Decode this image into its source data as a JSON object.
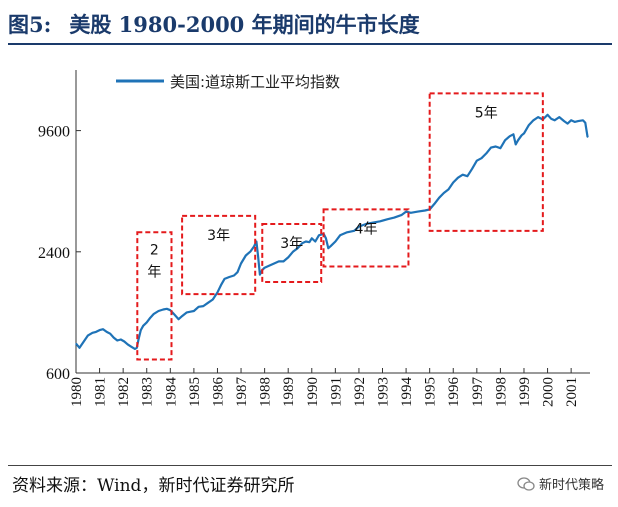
{
  "figure": {
    "number": "图5:",
    "title": "美股 1980-2000 年期间的牛市长度"
  },
  "source": "资料来源：Wind，新时代证券研究所",
  "watermark": "新时代策略",
  "chart_data": {
    "type": "line",
    "series": [
      {
        "name": "美国:道琼斯工业平均指数",
        "color": "#1f73b7",
        "x": [
          1980.0,
          1980.15,
          1980.3,
          1980.5,
          1980.7,
          1980.85,
          1981.0,
          1981.15,
          1981.3,
          1981.45,
          1981.6,
          1981.75,
          1981.9,
          1982.05,
          1982.2,
          1982.35,
          1982.5,
          1982.58,
          1982.65,
          1982.75,
          1982.85,
          1983.0,
          1983.15,
          1983.3,
          1983.5,
          1983.7,
          1983.85,
          1984.0,
          1984.15,
          1984.35,
          1984.5,
          1984.7,
          1984.85,
          1985.0,
          1985.2,
          1985.4,
          1985.6,
          1985.8,
          1986.0,
          1986.15,
          1986.3,
          1986.5,
          1986.7,
          1986.85,
          1987.0,
          1987.2,
          1987.4,
          1987.55,
          1987.65,
          1987.72,
          1987.8,
          1987.9,
          1988.0,
          1988.2,
          1988.4,
          1988.6,
          1988.8,
          1989.0,
          1989.2,
          1989.4,
          1989.6,
          1989.75,
          1989.9,
          1990.0,
          1990.15,
          1990.3,
          1990.5,
          1990.6,
          1990.7,
          1990.8,
          1991.0,
          1991.2,
          1991.5,
          1991.8,
          1992.0,
          1992.3,
          1992.6,
          1992.9,
          1993.2,
          1993.5,
          1993.8,
          1994.0,
          1994.2,
          1994.5,
          1994.8,
          1995.0,
          1995.2,
          1995.4,
          1995.6,
          1995.8,
          1996.0,
          1996.2,
          1996.4,
          1996.6,
          1996.8,
          1997.0,
          1997.2,
          1997.4,
          1997.6,
          1997.8,
          1998.0,
          1998.2,
          1998.4,
          1998.55,
          1998.65,
          1998.75,
          1998.9,
          1999.0,
          1999.2,
          1999.4,
          1999.6,
          1999.8,
          2000.0,
          2000.15,
          2000.3,
          2000.5,
          2000.7,
          2000.85,
          2001.0,
          2001.15,
          2001.3,
          2001.5,
          2001.6,
          2001.7
        ],
        "values": [
          840,
          800,
          850,
          920,
          950,
          960,
          980,
          990,
          960,
          940,
          900,
          870,
          880,
          860,
          830,
          810,
          790,
          800,
          880,
          980,
          1030,
          1070,
          1130,
          1180,
          1220,
          1240,
          1250,
          1230,
          1180,
          1110,
          1150,
          1200,
          1210,
          1220,
          1280,
          1290,
          1340,
          1390,
          1510,
          1640,
          1760,
          1800,
          1830,
          1900,
          2100,
          2300,
          2410,
          2550,
          2700,
          2300,
          1850,
          1950,
          2000,
          2050,
          2100,
          2150,
          2150,
          2250,
          2400,
          2500,
          2650,
          2700,
          2680,
          2800,
          2700,
          2900,
          2950,
          2800,
          2500,
          2560,
          2700,
          2900,
          3000,
          3050,
          3200,
          3300,
          3350,
          3400,
          3480,
          3550,
          3650,
          3800,
          3750,
          3800,
          3850,
          3900,
          4150,
          4450,
          4700,
          4900,
          5300,
          5600,
          5800,
          5700,
          6200,
          6800,
          7000,
          7400,
          7900,
          8000,
          7850,
          8600,
          9000,
          9200,
          8200,
          8600,
          9100,
          9300,
          10200,
          10800,
          11200,
          10900,
          11500,
          11000,
          10800,
          11200,
          10700,
          10400,
          10800,
          10600,
          10700,
          10800,
          10500,
          8900
        ]
      }
    ],
    "x_ticks": [
      1980,
      1981,
      1982,
      1983,
      1984,
      1985,
      1986,
      1987,
      1988,
      1989,
      1990,
      1991,
      1992,
      1993,
      1994,
      1995,
      1996,
      1997,
      1998,
      1999,
      2000,
      2001
    ],
    "x_tick_labels": [
      "1980",
      "1981",
      "1982",
      "1983",
      "1984",
      "1985",
      "1986",
      "1987",
      "1988",
      "1989",
      "1990",
      "1991",
      "1992",
      "1993",
      "1994",
      "1995",
      "1996",
      "1997",
      "1998",
      "1999",
      "2000",
      "2001"
    ],
    "y_ticks": [
      600,
      2400,
      9600
    ],
    "y_tick_labels": [
      "600",
      "2400",
      "9600"
    ],
    "ylim": [
      600,
      19200
    ],
    "xlim": [
      1980,
      2001.8
    ],
    "y_scale": "log",
    "grid": false,
    "legend_position": "top-left",
    "annotations": [
      {
        "text": "2年",
        "x": [
          1982.6,
          1984.05
        ],
        "y": [
          700,
          3000
        ],
        "color": "#e41a1c",
        "style": "dashed"
      },
      {
        "text": "3年",
        "x": [
          1984.5,
          1987.6
        ],
        "y": [
          1480,
          3620
        ],
        "color": "#e41a1c",
        "style": "dashed"
      },
      {
        "text": "3年",
        "x": [
          1987.9,
          1990.4
        ],
        "y": [
          1700,
          3300
        ],
        "color": "#e41a1c",
        "style": "dashed"
      },
      {
        "text": "4年",
        "x": [
          1990.5,
          1994.1
        ],
        "y": [
          2030,
          3900
        ],
        "color": "#e41a1c",
        "style": "dashed"
      },
      {
        "text": "5年",
        "x": [
          1995.0,
          1999.8
        ],
        "y": [
          3050,
          14700
        ],
        "color": "#e41a1c",
        "style": "dashed"
      }
    ]
  }
}
